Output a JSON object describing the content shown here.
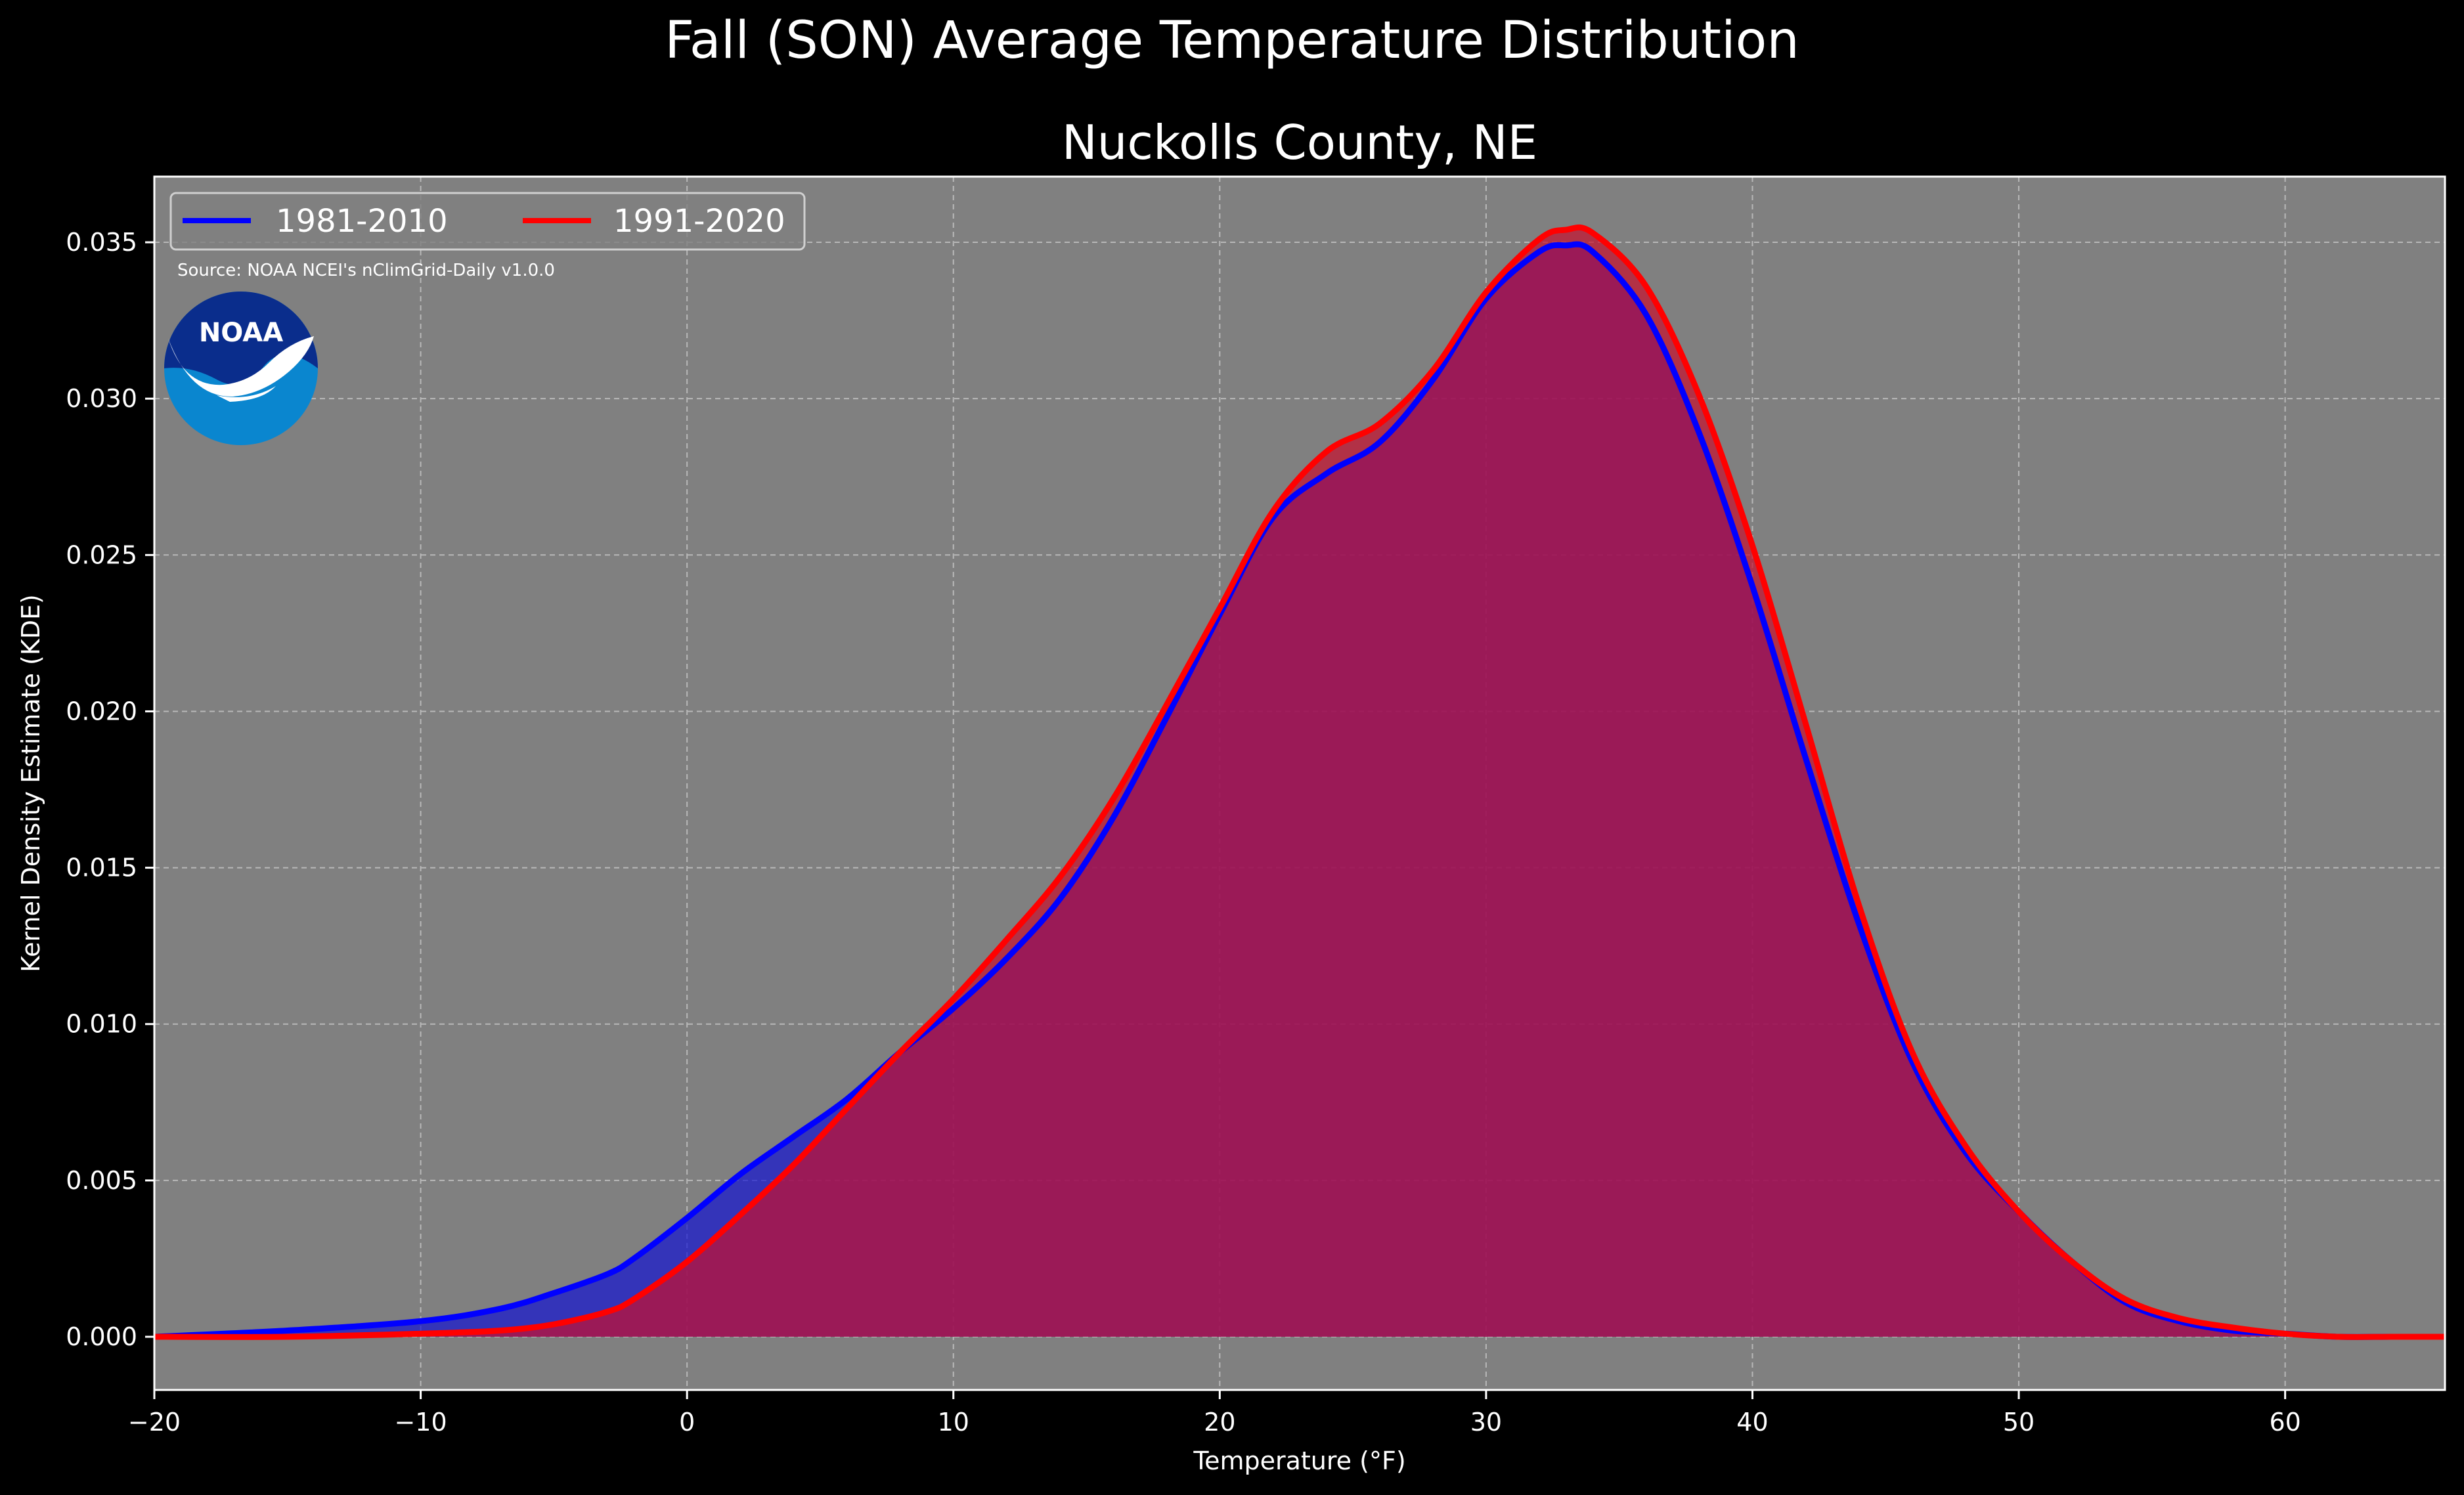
{
  "figure": {
    "suptitle": "Fall (SON) Average Temperature Distribution",
    "source_note": "Source: NOAA NCEI's nClimGrid-Daily v1.0.0",
    "logo_text": "NOAA"
  },
  "colors": {
    "figure_bg": "#000000",
    "axes_bg": "#808080",
    "grid": "#b8b8b8",
    "series_1981": "#0000ff",
    "series_1991": "#ff0000",
    "fill_1981": "#1414d2",
    "fill_1991": "#c8102e",
    "logo_dark": "#0a2d8c",
    "logo_light": "#0a86cf"
  },
  "chart_data": {
    "type": "area",
    "title": "Nuckolls County, NE",
    "xlabel": "Temperature (°F)",
    "ylabel": "Kernel Density Estimate (KDE)",
    "xlim": [
      -20,
      66
    ],
    "ylim": [
      -0.0017,
      0.0371
    ],
    "xticks": [
      -20,
      -10,
      0,
      10,
      20,
      30,
      40,
      50,
      60
    ],
    "xtick_labels": [
      "−20",
      "−10",
      "0",
      "10",
      "20",
      "30",
      "40",
      "50",
      "60"
    ],
    "yticks": [
      0.0,
      0.005,
      0.01,
      0.015,
      0.02,
      0.025,
      0.03,
      0.035
    ],
    "ytick_labels": [
      "0.000",
      "0.005",
      "0.010",
      "0.015",
      "0.020",
      "0.025",
      "0.030",
      "0.035"
    ],
    "grid": true,
    "legend_position": "top-left",
    "series": [
      {
        "name": "1981-2010",
        "color": "#0000ff",
        "x": [
          -20,
          -15,
          -10,
          -7,
          -5,
          -3,
          -2,
          0,
          2,
          4,
          6,
          8,
          10,
          12,
          14,
          16,
          18,
          20,
          22,
          24,
          26,
          28,
          30,
          32,
          33,
          34,
          36,
          38,
          40,
          42,
          44,
          46,
          48,
          50,
          52,
          54,
          56,
          58,
          60,
          62,
          64,
          66
        ],
        "y": [
          0.0,
          0.0002,
          0.0005,
          0.0009,
          0.0014,
          0.002,
          0.0025,
          0.0038,
          0.0052,
          0.0064,
          0.0076,
          0.0091,
          0.0105,
          0.0121,
          0.014,
          0.0166,
          0.0198,
          0.0231,
          0.0262,
          0.0276,
          0.0286,
          0.0306,
          0.0332,
          0.0347,
          0.0349,
          0.0347,
          0.0327,
          0.0289,
          0.024,
          0.0185,
          0.0132,
          0.0088,
          0.0059,
          0.004,
          0.0024,
          0.0011,
          0.0005,
          0.0002,
          0.0001,
          0.0,
          0.0,
          0.0
        ]
      },
      {
        "name": "1991-2020",
        "color": "#ff0000",
        "x": [
          -20,
          -15,
          -10,
          -7,
          -5,
          -3,
          -2,
          0,
          2,
          4,
          6,
          8,
          10,
          12,
          14,
          16,
          18,
          20,
          22,
          24,
          26,
          28,
          30,
          32,
          33,
          34,
          36,
          38,
          40,
          42,
          44,
          46,
          48,
          50,
          52,
          54,
          56,
          58,
          60,
          62,
          64,
          66
        ],
        "y": [
          0.0,
          0.0,
          0.0001,
          0.0002,
          0.0004,
          0.0008,
          0.0012,
          0.0024,
          0.0039,
          0.0055,
          0.0073,
          0.0091,
          0.0108,
          0.0127,
          0.0147,
          0.0172,
          0.0202,
          0.0233,
          0.0264,
          0.0283,
          0.0292,
          0.0309,
          0.0334,
          0.0351,
          0.0354,
          0.0353,
          0.0336,
          0.0301,
          0.0253,
          0.0196,
          0.0138,
          0.0091,
          0.0061,
          0.004,
          0.0024,
          0.0012,
          0.0006,
          0.0003,
          0.0001,
          0.0,
          0.0,
          0.0
        ]
      }
    ]
  }
}
